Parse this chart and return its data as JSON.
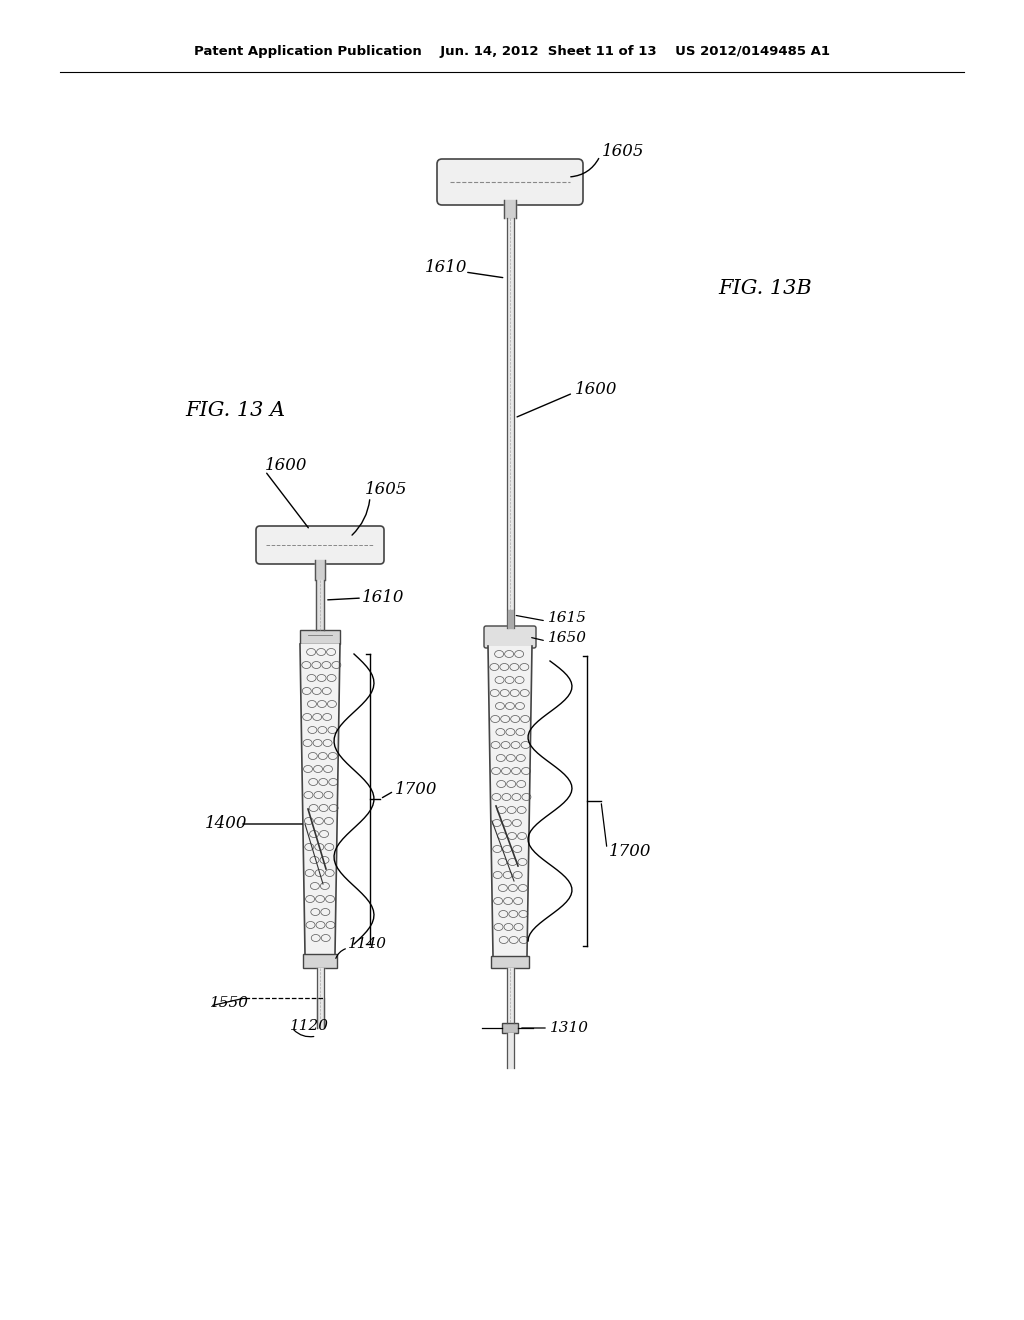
{
  "bg_color": "#ffffff",
  "header_text": "Patent Application Publication    Jun. 14, 2012  Sheet 11 of 13    US 2012/0149485 A1",
  "fig_13a_label": "FIG. 13 A",
  "fig_13b_label": "FIG. 13B"
}
